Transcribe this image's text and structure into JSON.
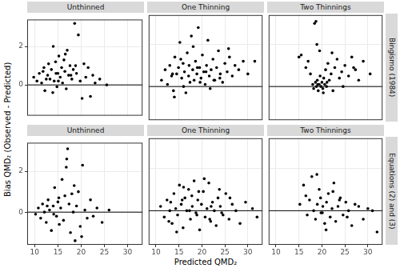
{
  "chart_data": {
    "type": "scatter",
    "x_label": "Predicted QMD₂",
    "y_label": "Bias QMD₂ (Observed - Predicted)",
    "xlim": [
      8.4,
      33.2
    ],
    "xticks": [
      10,
      15,
      20,
      25,
      30
    ],
    "ylim": [
      -1.6,
      3.4
    ],
    "yticks": [
      0,
      2
    ],
    "grid": true,
    "color": "#000000",
    "reference_line": 0,
    "columns": [
      "Unthinned",
      "One Thinning",
      "Two Thinnings"
    ],
    "rows": [
      "Bingismo (1984)",
      "Equations (2) and (3)"
    ],
    "panels": [
      {
        "x": [
          9.8,
          10.5,
          11,
          11.5,
          12,
          12.2,
          12.8,
          13,
          13.3,
          13.6,
          14,
          14.2,
          14.5,
          14.8,
          15,
          15.2,
          15.5,
          15.8,
          16,
          16.3,
          16.5,
          16.8,
          17,
          17.3,
          17.6,
          18,
          18.3,
          18.6,
          19,
          19.4,
          19.8,
          20.2,
          20.6,
          21,
          21.5,
          22,
          22.5,
          23,
          24,
          25.5,
          11.8,
          13.9,
          15.1,
          16.6,
          17.8,
          18.8,
          12.5,
          14.6
        ],
        "values": [
          0.4,
          0.2,
          0.6,
          0.1,
          0.9,
          -0.3,
          0.5,
          1.1,
          0.3,
          0.8,
          2.0,
          0.2,
          1.2,
          -0.1,
          0.6,
          1.5,
          0.4,
          0.9,
          0.1,
          1.3,
          0.7,
          -0.2,
          1.8,
          0.5,
          1.0,
          0.3,
          0.8,
          3.2,
          0.6,
          2.6,
          0.2,
          -0.7,
          1.1,
          0.4,
          0.9,
          -0.6,
          0.5,
          0.1,
          0.3,
          0.0,
          0.7,
          -0.4,
          0.2,
          1.6,
          0.5,
          1.0,
          0.3,
          0.6
        ]
      },
      {
        "x": [
          11.2,
          12,
          12.5,
          13,
          13.4,
          13.8,
          14.1,
          14.5,
          14.9,
          15.2,
          15.6,
          15.9,
          16.2,
          16.5,
          16.8,
          17.1,
          17.4,
          17.7,
          18,
          18.3,
          18.6,
          18.9,
          19.2,
          19.5,
          19.8,
          20.1,
          20.4,
          20.7,
          21,
          21.3,
          21.6,
          22,
          22.4,
          22.8,
          23.2,
          23.6,
          24,
          24.5,
          25,
          25.5,
          26,
          26.6,
          27.2,
          28,
          29,
          30,
          31.5,
          14,
          16,
          18.1,
          19.6,
          21.8,
          23.9,
          17.2,
          15.4,
          20.9,
          13.6,
          25.8,
          22.6,
          19
        ],
        "values": [
          0.3,
          0.8,
          0.1,
          1.0,
          0.5,
          -0.2,
          1.4,
          0.6,
          0.9,
          2.1,
          0.4,
          1.1,
          0.7,
          -0.3,
          1.6,
          0.5,
          0.2,
          2.4,
          0.8,
          0.3,
          1.2,
          0.6,
          2.8,
          0.9,
          0.4,
          1.5,
          0.7,
          0.1,
          1.0,
          2.2,
          0.5,
          0.8,
          1.3,
          0.3,
          0.9,
          1.7,
          0.6,
          0.2,
          1.1,
          0.7,
          1.4,
          0.5,
          1.0,
          0.8,
          1.2,
          0.6,
          1.2,
          -0.5,
          0.0,
          1.9,
          0.2,
          -0.1,
          0.4,
          1.0,
          1.3,
          0.7,
          0.6,
          1.8,
          0.3,
          0.9
        ]
      },
      {
        "x": [
          15,
          15.5,
          16.5,
          17,
          17.5,
          18,
          18.2,
          18.4,
          18.6,
          18.8,
          19,
          19.2,
          19.4,
          19.6,
          19.8,
          20,
          20.2,
          20.4,
          20.6,
          20.8,
          21,
          21.3,
          21.6,
          22,
          22.4,
          22.8,
          23.3,
          23.8,
          24.3,
          25,
          25.8,
          26.5,
          27.3,
          28,
          29,
          30.5,
          18.7,
          19.1,
          19.5,
          20.3,
          21.1,
          22.2,
          18.9,
          24.6,
          26.9
        ],
        "values": [
          1.4,
          1.5,
          0.9,
          1.2,
          0.6,
          0.1,
          -0.1,
          3.0,
          0.2,
          0.0,
          0.3,
          -0.2,
          0.1,
          0.5,
          0.0,
          0.2,
          -0.1,
          0.4,
          0.1,
          0.8,
          0.0,
          1.1,
          0.3,
          0.6,
          -0.2,
          0.9,
          1.3,
          0.4,
          0.7,
          1.0,
          0.5,
          1.4,
          0.8,
          0.3,
          1.2,
          0.6,
          3.1,
          0.1,
          1.7,
          -0.3,
          0.2,
          1.6,
          2.0,
          0.0,
          0.9
        ]
      },
      {
        "x": [
          10.2,
          10.8,
          11.3,
          11.7,
          12.1,
          12.5,
          12.9,
          13.2,
          13.6,
          14,
          14.3,
          14.7,
          15,
          15.3,
          15.6,
          15.9,
          16.2,
          16.5,
          16.8,
          17.1,
          17.4,
          17.7,
          18,
          18.3,
          18.7,
          19,
          19.4,
          19.8,
          20.3,
          20.8,
          21.3,
          22,
          22.6,
          23.4,
          24.5,
          26,
          16.9,
          15.2,
          14.1,
          12.7,
          18.5,
          20.1
        ],
        "values": [
          -0.1,
          0.2,
          -0.3,
          0.4,
          0.0,
          -0.5,
          0.6,
          0.1,
          -0.9,
          0.3,
          1.2,
          -0.2,
          0.5,
          -0.6,
          0.2,
          1.6,
          -0.4,
          0.8,
          2.2,
          3.1,
          0.4,
          -1.0,
          0.9,
          0.0,
          -1.4,
          0.3,
          1.0,
          -0.7,
          2.3,
          0.1,
          -0.3,
          0.6,
          -0.2,
          0.2,
          -0.5,
          0.1,
          2.6,
          0.7,
          -0.1,
          0.3,
          1.3,
          -1.2
        ]
      },
      {
        "x": [
          11,
          11.8,
          12.4,
          13,
          13.5,
          13.9,
          14.3,
          14.7,
          15.1,
          15.5,
          15.9,
          16.3,
          16.7,
          17.1,
          17.5,
          17.9,
          18.3,
          18.7,
          19.1,
          19.5,
          19.9,
          20.3,
          20.7,
          21.1,
          21.5,
          21.9,
          22.3,
          22.7,
          23.1,
          23.5,
          24,
          24.6,
          25.2,
          25.9,
          26.6,
          27.4,
          28.3,
          29.5,
          31,
          32,
          14.5,
          16,
          17.8,
          18.9,
          20.5,
          22,
          13.2,
          24.3,
          15.7,
          19.3,
          21.7,
          17.3,
          26.1,
          12.8,
          23.8
        ],
        "values": [
          0.2,
          -0.3,
          0.5,
          0.0,
          -0.6,
          0.8,
          0.1,
          -0.2,
          1.2,
          0.3,
          -0.8,
          0.6,
          0.0,
          1.0,
          -0.4,
          0.2,
          1.4,
          -0.1,
          0.5,
          -0.9,
          0.3,
          0.9,
          -0.3,
          0.1,
          1.3,
          -0.5,
          0.4,
          0.0,
          -0.7,
          0.6,
          0.2,
          -0.2,
          0.8,
          -0.4,
          0.3,
          0.0,
          -0.6,
          0.4,
          0.1,
          -0.3,
          -1.0,
          1.1,
          0.7,
          -0.2,
          1.5,
          0.2,
          0.4,
          -0.1,
          0.5,
          0.9,
          -0.4,
          0.0,
          0.6,
          -0.5,
          1.0
        ]
      },
      {
        "x": [
          15.2,
          16,
          16.8,
          17.3,
          17.8,
          18.2,
          18.6,
          19,
          19.4,
          19.8,
          20.2,
          20.6,
          21,
          21.4,
          21.8,
          22.2,
          22.6,
          23,
          23.5,
          24,
          24.6,
          25.2,
          25.8,
          26.5,
          27.2,
          28,
          29,
          30,
          31,
          32,
          18.9,
          19.7,
          20.9,
          22.4,
          16.5,
          25.5,
          23.8,
          20.1
        ],
        "values": [
          0.3,
          1.2,
          -0.2,
          0.5,
          1.6,
          0.0,
          -0.4,
          0.3,
          1.0,
          -0.1,
          0.2,
          -0.6,
          0.4,
          0.8,
          -0.3,
          0.1,
          1.3,
          -0.5,
          0.2,
          0.6,
          -0.2,
          0.4,
          0.0,
          -0.7,
          0.3,
          0.2,
          -0.4,
          0.1,
          0.0,
          -1.0,
          1.7,
          0.6,
          -0.9,
          0.9,
          0.7,
          -0.3,
          0.5,
          -0.1
        ]
      }
    ]
  }
}
